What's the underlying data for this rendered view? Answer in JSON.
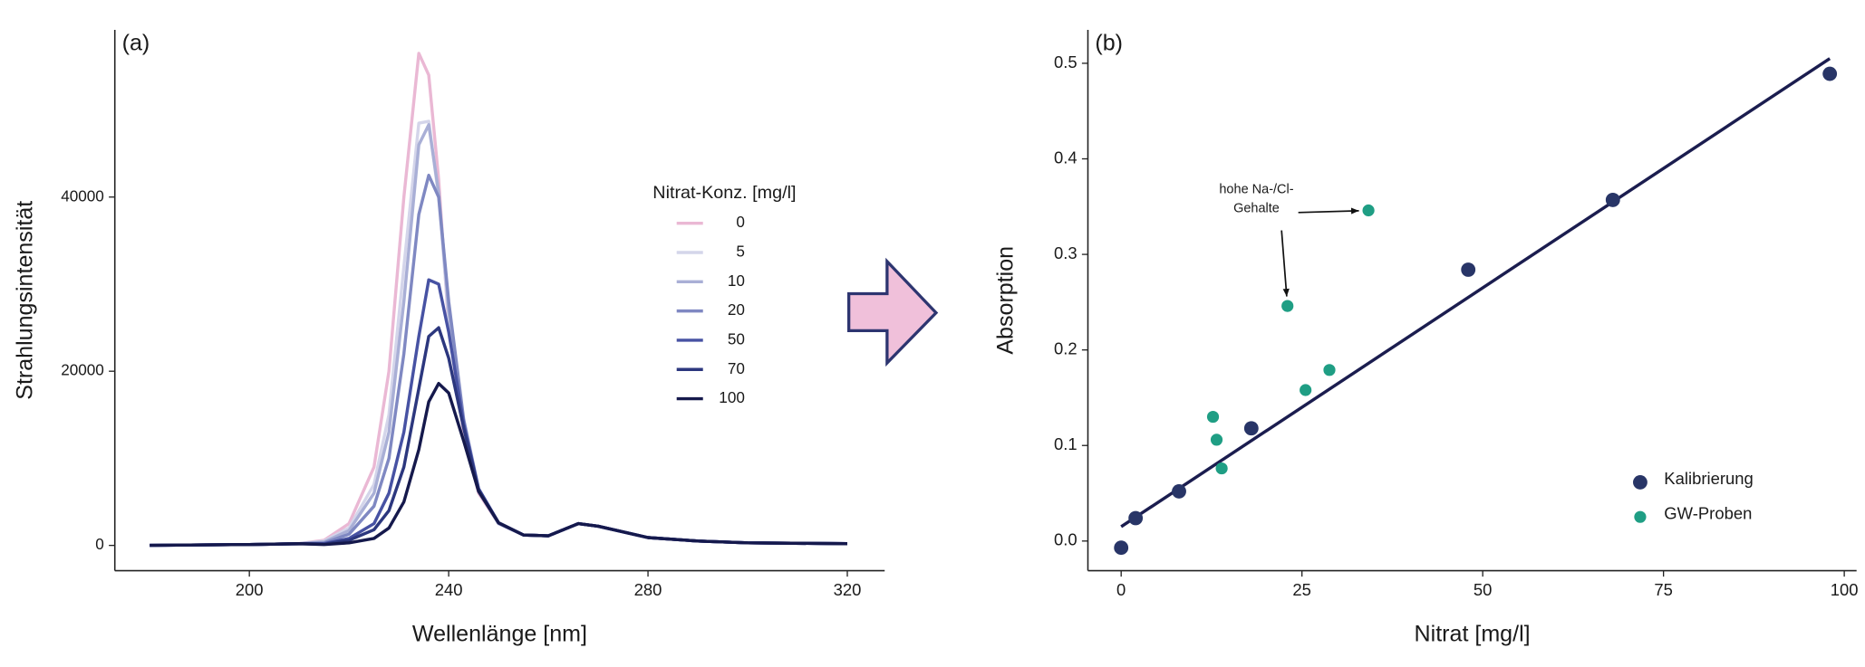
{
  "chart_data": [
    {
      "type": "line",
      "panel_label": "(a)",
      "x_label": "Wellenlänge [nm]",
      "y_label": "Strahlungsintensität",
      "legend_title": "Nitrat-Konz. [mg/l]",
      "x": [
        180,
        200,
        210,
        215,
        220,
        225,
        228,
        231,
        234,
        236,
        238,
        240,
        243,
        246,
        250,
        255,
        260,
        266,
        270,
        280,
        290,
        300,
        320
      ],
      "series": [
        {
          "name": "0",
          "color": "#eab8d4",
          "values": [
            0,
            100,
            200,
            600,
            2500,
            9000,
            20000,
            40000,
            56500,
            54000,
            42000,
            25000,
            13000,
            6000,
            2500,
            1200,
            1100,
            2500,
            2200,
            900,
            500,
            300,
            200
          ]
        },
        {
          "name": "5",
          "color": "#d4d5ea",
          "values": [
            0,
            100,
            200,
            500,
            2000,
            7000,
            15000,
            32000,
            48500,
            48700,
            40000,
            26000,
            13500,
            6200,
            2500,
            1200,
            1100,
            2500,
            2200,
            900,
            500,
            300,
            200
          ]
        },
        {
          "name": "10",
          "color": "#a9afd6",
          "values": [
            0,
            100,
            200,
            400,
            1700,
            6000,
            13000,
            28000,
            46000,
            48300,
            40500,
            27000,
            14000,
            6300,
            2500,
            1200,
            1100,
            2500,
            2200,
            900,
            500,
            300,
            200
          ]
        },
        {
          "name": "20",
          "color": "#7f88c2",
          "values": [
            0,
            100,
            200,
            300,
            1300,
            4500,
            10000,
            22000,
            38000,
            42500,
            40000,
            28000,
            14500,
            6500,
            2600,
            1200,
            1100,
            2500,
            2200,
            900,
            500,
            300,
            200
          ]
        },
        {
          "name": "50",
          "color": "#4752a3",
          "values": [
            0,
            100,
            200,
            200,
            800,
            2500,
            6000,
            13000,
            24000,
            30500,
            30000,
            24500,
            14000,
            6500,
            2600,
            1200,
            1100,
            2500,
            2200,
            900,
            500,
            300,
            200
          ]
        },
        {
          "name": "70",
          "color": "#2c377e",
          "values": [
            0,
            100,
            200,
            150,
            600,
            1800,
            4000,
            9000,
            18000,
            24000,
            25000,
            21500,
            13500,
            6400,
            2600,
            1200,
            1100,
            2500,
            2200,
            900,
            500,
            300,
            200
          ]
        },
        {
          "name": "100",
          "color": "#15194c",
          "values": [
            0,
            100,
            200,
            100,
            300,
            800,
            2000,
            5000,
            11000,
            16500,
            18600,
            17500,
            12000,
            6200,
            2600,
            1200,
            1100,
            2500,
            2200,
            900,
            500,
            300,
            200
          ]
        }
      ],
      "xlim": [
        173,
        327.5
      ],
      "xticks": [
        200,
        240,
        280,
        320
      ],
      "ylim": [
        -2900,
        59200
      ],
      "yticks": [
        0,
        20000,
        40000
      ]
    },
    {
      "type": "scatter",
      "panel_label": "(b)",
      "x_label": "Nitrat [mg/l]",
      "y_label": "Absorption",
      "series": [
        {
          "name": "Kalibrierung",
          "color": "#283567",
          "x": [
            0,
            2,
            8,
            18,
            48,
            68,
            98
          ],
          "values": [
            -0.007,
            0.024,
            0.052,
            0.118,
            0.284,
            0.357,
            0.489
          ]
        },
        {
          "name": "GW-Proben",
          "color": "#1f9e84",
          "x": [
            12.7,
            13.2,
            13.9,
            23,
            25.5,
            28.8,
            34.2
          ],
          "values": [
            0.13,
            0.106,
            0.076,
            0.246,
            0.158,
            0.179,
            0.346
          ]
        }
      ],
      "fit": {
        "color": "#1b1d4f",
        "x": [
          0,
          98
        ],
        "values": [
          0.015,
          0.505
        ]
      },
      "annotation": [
        "hohe Na-/Cl-",
        "Gehalte"
      ],
      "xlim": [
        -4.6,
        101.7
      ],
      "xticks": [
        0,
        25,
        50,
        75,
        100
      ],
      "ylim": [
        -0.031,
        0.535
      ],
      "yticks": [
        {
          "value": 0,
          "label": "0.0"
        },
        0.1,
        0.2,
        0.3,
        0.4,
        0.5
      ]
    }
  ]
}
